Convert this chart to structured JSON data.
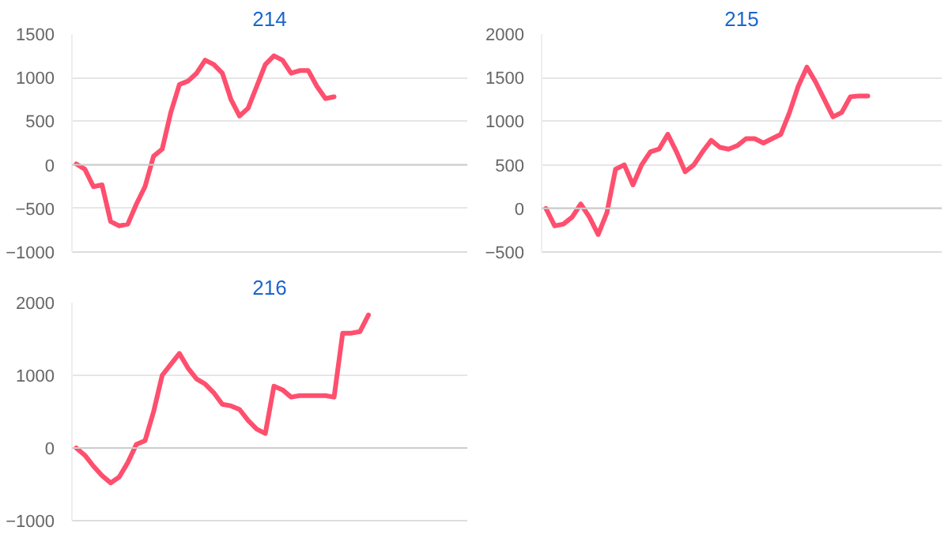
{
  "chart_data": [
    {
      "type": "line",
      "title": "214",
      "categories": [
        null,
        null,
        null,
        null,
        null,
        null,
        null,
        null,
        null,
        null,
        null,
        null,
        null,
        null,
        null,
        null,
        null,
        null,
        null,
        null,
        null,
        null,
        null,
        null,
        null,
        null,
        null,
        null,
        null,
        null,
        null,
        null,
        null,
        null,
        null,
        null,
        null,
        null,
        null,
        null,
        null,
        null,
        null,
        null,
        null,
        null
      ],
      "series": [
        {
          "color": "#ff4f6e",
          "values": [
            10,
            -50,
            -250,
            -230,
            -650,
            -700,
            -680,
            -450,
            -250,
            100,
            180,
            600,
            920,
            960,
            1050,
            1200,
            1150,
            1050,
            750,
            560,
            650,
            900,
            1150,
            1250,
            1200,
            1050,
            1080,
            1080,
            900,
            760,
            780,
            null,
            null,
            null,
            null,
            null,
            null,
            null,
            null,
            null,
            null,
            null,
            null,
            null,
            null,
            null
          ]
        }
      ],
      "ylim": [
        -1000,
        1500
      ],
      "yticks": [
        -1000,
        -500,
        0,
        500,
        1000,
        1500
      ],
      "grid": "y",
      "tick_labels": "y"
    },
    {
      "type": "line",
      "title": "215",
      "categories": [
        null,
        null,
        null,
        null,
        null,
        null,
        null,
        null,
        null,
        null,
        null,
        null,
        null,
        null,
        null,
        null,
        null,
        null,
        null,
        null,
        null,
        null,
        null,
        null,
        null,
        null,
        null,
        null,
        null,
        null,
        null,
        null,
        null,
        null,
        null,
        null,
        null,
        null,
        null,
        null,
        null,
        null,
        null,
        null,
        null,
        null
      ],
      "series": [
        {
          "color": "#ff4f6e",
          "values": [
            0,
            -200,
            -180,
            -100,
            50,
            -100,
            -300,
            -50,
            450,
            500,
            270,
            500,
            650,
            680,
            850,
            650,
            420,
            500,
            650,
            780,
            700,
            680,
            720,
            800,
            800,
            750,
            800,
            850,
            1100,
            1400,
            1620,
            1450,
            1250,
            1050,
            1100,
            1280,
            1290,
            1290,
            null,
            null,
            null,
            null,
            null,
            null,
            null,
            null
          ]
        }
      ],
      "ylim": [
        -500,
        2000
      ],
      "yticks": [
        -500,
        0,
        500,
        1000,
        1500,
        2000
      ],
      "grid": "y",
      "tick_labels": "y"
    },
    {
      "type": "line",
      "title": "216",
      "categories": [
        null,
        null,
        null,
        null,
        null,
        null,
        null,
        null,
        null,
        null,
        null,
        null,
        null,
        null,
        null,
        null,
        null,
        null,
        null,
        null,
        null,
        null,
        null,
        null,
        null,
        null,
        null,
        null,
        null,
        null,
        null,
        null,
        null,
        null,
        null,
        null,
        null,
        null,
        null,
        null,
        null,
        null,
        null,
        null,
        null,
        null
      ],
      "series": [
        {
          "color": "#ff4f6e",
          "values": [
            0,
            -100,
            -250,
            -380,
            -480,
            -400,
            -200,
            50,
            100,
            500,
            1000,
            1150,
            1300,
            1100,
            950,
            880,
            760,
            600,
            580,
            530,
            380,
            260,
            200,
            850,
            800,
            700,
            720,
            720,
            720,
            720,
            700,
            1580,
            1580,
            1600,
            1830,
            null,
            null,
            null,
            null,
            null,
            null,
            null,
            null,
            null,
            null,
            null
          ]
        }
      ],
      "ylim": [
        -1000,
        2000
      ],
      "yticks": [
        -1000,
        0,
        1000,
        2000
      ],
      "grid": "y",
      "tick_labels": "y"
    }
  ]
}
